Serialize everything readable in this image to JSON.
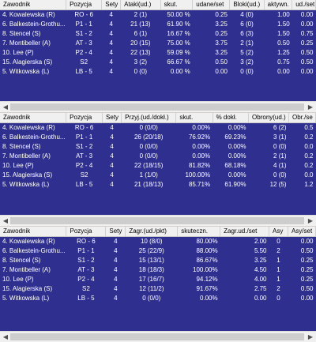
{
  "headers": {
    "player": "Zawodnik",
    "position": "Pozycja",
    "sets": "Sety"
  },
  "tables": [
    {
      "headers": [
        "Ataki(ud.)",
        "skut.",
        "udane/set",
        "Bloki(ud.)",
        "aktywn.",
        "ud./set"
      ],
      "rows": [
        {
          "player": "4. Kowalewska (R)",
          "position": "RO - 6",
          "sets": "4",
          "stats": [
            "2 (1)",
            "50.00 %",
            "0.25",
            "4 (0)",
            "1.00",
            "0.00"
          ]
        },
        {
          "player": "6. Balkestein-Grothu...",
          "position": "P1 - 1",
          "sets": "4",
          "stats": [
            "21 (13)",
            "61.90 %",
            "3.25",
            "6 (0)",
            "1.50",
            "0.00"
          ]
        },
        {
          "player": "8. Stencel (S)",
          "position": "S1 - 2",
          "sets": "4",
          "stats": [
            "6 (1)",
            "16.67 %",
            "0.25",
            "6 (3)",
            "1.50",
            "0.75"
          ]
        },
        {
          "player": "7. Montibeller (A)",
          "position": "AT - 3",
          "sets": "4",
          "stats": [
            "20 (15)",
            "75.00 %",
            "3.75",
            "2 (1)",
            "0.50",
            "0.25"
          ]
        },
        {
          "player": "10. Lee (P)",
          "position": "P2 - 4",
          "sets": "4",
          "stats": [
            "22 (13)",
            "59.09 %",
            "3.25",
            "5 (2)",
            "1.25",
            "0.50"
          ]
        },
        {
          "player": "15. Alagierska (S)",
          "position": "S2",
          "sets": "4",
          "stats": [
            "3 (2)",
            "66.67 %",
            "0.50",
            "3 (2)",
            "0.75",
            "0.50"
          ]
        },
        {
          "player": "5. Witkowska (L)",
          "position": "LB - 5",
          "sets": "4",
          "stats": [
            "0 (0)",
            "0.00 %",
            "0.00",
            "0 (0)",
            "0.00",
            "0.00"
          ]
        }
      ]
    },
    {
      "headers": [
        "Przyj.(ud./dokł.)",
        "skut.",
        "% dokł.",
        "Obrony(ud.)",
        "Obr./se"
      ],
      "rows": [
        {
          "player": "4. Kowalewska (R)",
          "position": "RO - 6",
          "sets": "4",
          "stats": [
            "0 (0/0)",
            "0.00%",
            "0.00%",
            "6 (2)",
            "0.5"
          ]
        },
        {
          "player": "6. Balkestein-Grothu...",
          "position": "P1 - 1",
          "sets": "4",
          "stats": [
            "26 (20/18)",
            "76.92%",
            "69.23%",
            "3 (1)",
            "0.2"
          ]
        },
        {
          "player": "8. Stencel (S)",
          "position": "S1 - 2",
          "sets": "4",
          "stats": [
            "0 (0/0)",
            "0.00%",
            "0.00%",
            "0 (0)",
            "0.0"
          ]
        },
        {
          "player": "7. Montibeller (A)",
          "position": "AT - 3",
          "sets": "4",
          "stats": [
            "0 (0/0)",
            "0.00%",
            "0.00%",
            "2 (1)",
            "0.2"
          ]
        },
        {
          "player": "10. Lee (P)",
          "position": "P2 - 4",
          "sets": "4",
          "stats": [
            "22 (18/15)",
            "81.82%",
            "68.18%",
            "4 (1)",
            "0.2"
          ]
        },
        {
          "player": "15. Alagierska (S)",
          "position": "S2",
          "sets": "4",
          "stats": [
            "1 (1/0)",
            "100.00%",
            "0.00%",
            "0 (0)",
            "0.0"
          ]
        },
        {
          "player": "5. Witkowska (L)",
          "position": "LB - 5",
          "sets": "4",
          "stats": [
            "21 (18/13)",
            "85.71%",
            "61.90%",
            "12 (5)",
            "1.2"
          ]
        }
      ]
    },
    {
      "headers": [
        "Zagr.(ud./pkt)",
        "skuteczn.",
        "Zagr.ud./set",
        "Asy",
        "Asy/set"
      ],
      "rows": [
        {
          "player": "4. Kowalewska (R)",
          "position": "RO - 6",
          "sets": "4",
          "stats": [
            "10 (8/0)",
            "80.00%",
            "2.00",
            "0",
            "0.00"
          ]
        },
        {
          "player": "6. Balkestein-Grothu...",
          "position": "P1 - 1",
          "sets": "4",
          "stats": [
            "25 (22/9)",
            "88.00%",
            "5.50",
            "2",
            "0.50"
          ]
        },
        {
          "player": "8. Stencel (S)",
          "position": "S1 - 2",
          "sets": "4",
          "stats": [
            "15 (13/1)",
            "86.67%",
            "3.25",
            "1",
            "0.25"
          ]
        },
        {
          "player": "7. Montibeller (A)",
          "position": "AT - 3",
          "sets": "4",
          "stats": [
            "18 (18/3)",
            "100.00%",
            "4.50",
            "1",
            "0.25"
          ]
        },
        {
          "player": "10. Lee (P)",
          "position": "P2 - 4",
          "sets": "4",
          "stats": [
            "17 (16/7)",
            "94.12%",
            "4.00",
            "1",
            "0.25"
          ]
        },
        {
          "player": "15. Alagierska (S)",
          "position": "S2",
          "sets": "4",
          "stats": [
            "12 (11/2)",
            "91.67%",
            "2.75",
            "2",
            "0.50"
          ]
        },
        {
          "player": "5. Witkowska (L)",
          "position": "LB - 5",
          "sets": "4",
          "stats": [
            "0 (0/0)",
            "0.00%",
            "0.00",
            "0",
            "0.00"
          ]
        }
      ]
    }
  ],
  "colors": {
    "row_bg": "#2f2f8f",
    "row_text": "#ffffff",
    "header_bg": "#f0f0f0"
  },
  "icons": {
    "scroll_left": "◀",
    "scroll_right": "▶"
  }
}
